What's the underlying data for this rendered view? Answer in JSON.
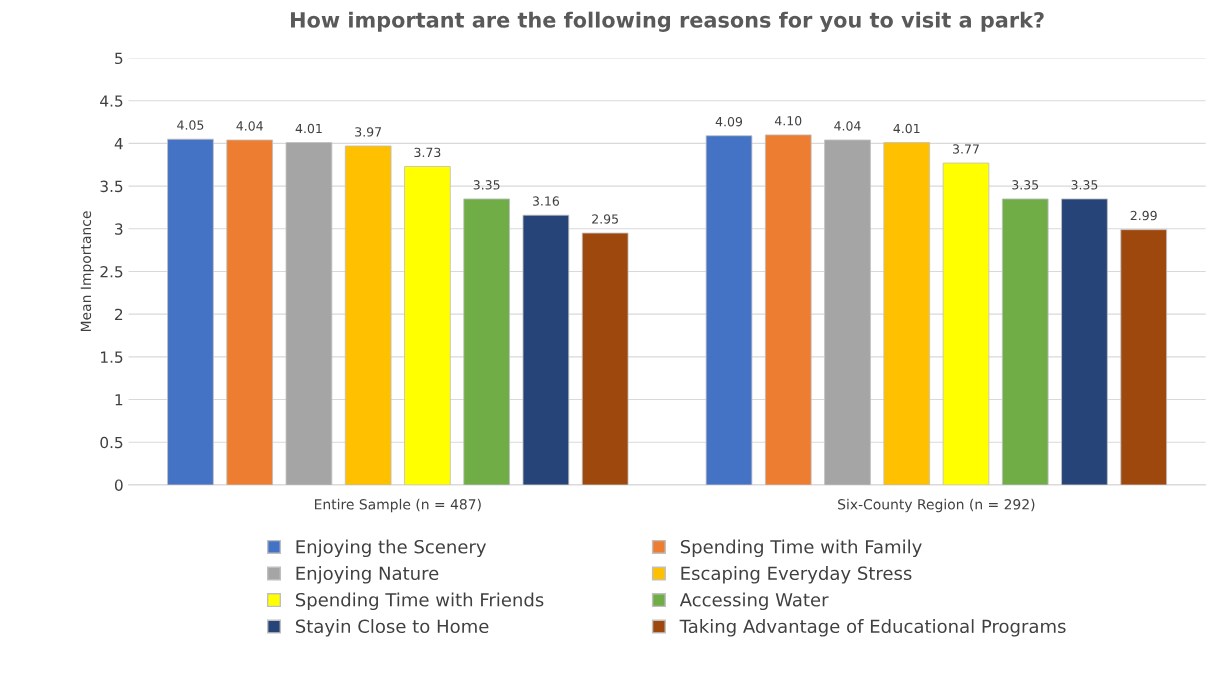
{
  "chart_data": {
    "type": "bar",
    "title": "How important are the following reasons for you to visit a park?",
    "ylabel": "Mean Importance",
    "categories": [
      "Entire Sample (n = 487)",
      "Six-County Region (n = 292)"
    ],
    "series": [
      {
        "name": "Enjoying the Scenery",
        "color": "#4472c4",
        "values": [
          4.05,
          4.09
        ],
        "value_labels": [
          "4.05",
          "4.09"
        ]
      },
      {
        "name": "Spending Time with Family",
        "color": "#ed7d31",
        "values": [
          4.04,
          4.1
        ],
        "value_labels": [
          "4.04",
          "4.10"
        ]
      },
      {
        "name": "Enjoying Nature",
        "color": "#a5a5a5",
        "values": [
          4.01,
          4.04
        ],
        "value_labels": [
          "4.01",
          "4.04"
        ]
      },
      {
        "name": "Escaping Everyday Stress",
        "color": "#ffc000",
        "values": [
          3.97,
          4.01
        ],
        "value_labels": [
          "3.97",
          "4.01"
        ]
      },
      {
        "name": "Spending Time with Friends",
        "color": "#ffff00",
        "values": [
          3.73,
          3.77
        ],
        "value_labels": [
          "3.73",
          "3.77"
        ]
      },
      {
        "name": "Accessing Water",
        "color": "#70ad47",
        "values": [
          3.35,
          3.35
        ],
        "value_labels": [
          "3.35",
          "3.35"
        ]
      },
      {
        "name": "Stayin Close to Home",
        "color": "#264478",
        "values": [
          3.16,
          3.35
        ],
        "value_labels": [
          "3.16",
          "3.35"
        ]
      },
      {
        "name": "Taking Advantage of Educational Programs",
        "color": "#9e480e",
        "values": [
          2.95,
          2.99
        ],
        "value_labels": [
          "2.95",
          "2.99"
        ]
      }
    ],
    "ylim": [
      0,
      5
    ],
    "yticks": [
      0,
      0.5,
      1,
      1.5,
      2,
      2.5,
      3,
      3.5,
      4,
      4.5,
      5
    ],
    "grid": "y",
    "legend": "bottom"
  }
}
